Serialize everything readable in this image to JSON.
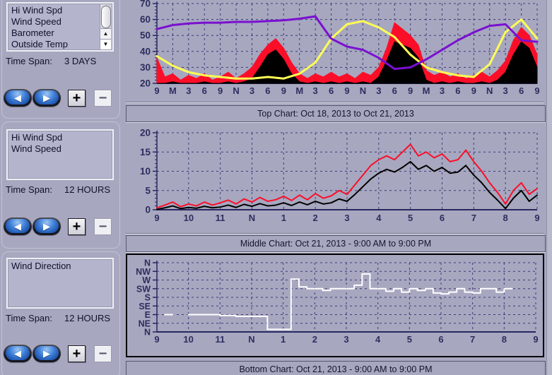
{
  "icons": {
    "back": "◀",
    "forward": "▶",
    "scroll_up": "▲",
    "scroll_down": "▼"
  },
  "sidebar": {
    "panels": [
      {
        "items": [
          "Hi Wind Spd",
          "Wind Speed",
          "Barometer",
          "Outside Temp"
        ],
        "time_span_label": "Time Span:",
        "time_span_value": "3 DAYS",
        "zoom_in_label": "+",
        "zoom_out_label": "−"
      },
      {
        "items": [
          "Hi Wind Spd",
          "Wind Speed"
        ],
        "time_span_label": "Time Span:",
        "time_span_value": "12 HOURS",
        "zoom_in_label": "+",
        "zoom_out_label": "−"
      },
      {
        "items": [
          "Wind Direction"
        ],
        "time_span_label": "Time Span:",
        "time_span_value": "12 HOURS",
        "zoom_in_label": "+",
        "zoom_out_label": "−"
      }
    ]
  },
  "captions": {
    "top": "Top Chart:  Oct 18, 2013  to  Oct 21, 2013",
    "middle": "Middle Chart:  Oct 21, 2013 - 9:00 AM  to  9:00 PM",
    "bottom": "Bottom Chart:  Oct 21, 2013 - 9:00 AM  to  9:00 PM"
  },
  "colors": {
    "background": "#a7a7c0",
    "grid": "#3c3c78",
    "axis": "#27275e",
    "tick_label": "#2d2d5e",
    "hi_wind": "#fb0f28",
    "wind": "#000000",
    "temp": "#ffff55",
    "barometer": "#7a10d0",
    "wind_dir": "#ffffff"
  },
  "chart_data": [
    {
      "id": "top",
      "type": "line",
      "title": "Top Chart: Oct 18, 2013 to Oct 21, 2013",
      "x_labels": [
        "9",
        "M",
        "3",
        "6",
        "9",
        "N",
        "3",
        "6",
        "9",
        "M",
        "3",
        "6",
        "9",
        "N",
        "3",
        "6",
        "9",
        "M",
        "3",
        "6",
        "9",
        "N",
        "3",
        "6",
        "9"
      ],
      "ylim": [
        20,
        70
      ],
      "y_ticks": [
        20,
        30,
        40,
        50,
        60,
        70
      ],
      "minor_y_step": 2,
      "grid": "dashed",
      "legend": "none",
      "series": [
        {
          "name": "Hi Wind Spd",
          "color": "#fb0f28",
          "fill": true,
          "values": [
            36,
            24,
            26,
            22,
            25,
            23,
            26,
            22,
            24,
            27,
            23,
            26,
            30,
            38,
            44,
            48,
            42,
            33,
            26,
            23,
            26,
            24,
            27,
            24,
            26,
            23,
            27,
            25,
            30,
            42,
            58,
            54,
            50,
            44,
            28,
            25,
            27,
            24,
            26,
            23,
            25,
            27,
            24,
            28,
            34,
            47,
            55,
            50,
            38
          ]
        },
        {
          "name": "Wind Speed",
          "color": "#000000",
          "fill": true,
          "values": [
            20,
            20,
            21,
            20,
            20,
            20,
            21,
            20,
            20,
            21,
            20,
            21,
            23,
            30,
            38,
            41,
            35,
            26,
            21,
            20,
            21,
            20,
            21,
            20,
            21,
            20,
            21,
            20,
            24,
            34,
            46,
            44,
            42,
            36,
            22,
            20,
            21,
            20,
            21,
            20,
            20,
            21,
            20,
            22,
            27,
            38,
            46,
            42,
            30
          ]
        },
        {
          "name": "Outside Temp",
          "color": "#ffff55",
          "width": 3,
          "values": [
            37,
            31,
            27,
            25,
            24,
            23,
            23,
            24,
            23,
            26,
            33,
            48,
            57,
            59,
            55,
            49,
            38,
            30,
            27,
            25,
            24,
            32,
            52,
            60,
            48
          ]
        },
        {
          "name": "Barometer",
          "color": "#7a10d0",
          "width": 3,
          "values": [
            54,
            56.5,
            57.5,
            58,
            58,
            58.5,
            58.5,
            59,
            59.5,
            60.5,
            62,
            48,
            43,
            41,
            36,
            29,
            30,
            35,
            41,
            47,
            52,
            56,
            57,
            47,
            46
          ]
        }
      ]
    },
    {
      "id": "middle",
      "type": "line",
      "title": "Middle Chart: Oct 21, 2013 - 9:00 AM to 9:00 PM",
      "x_labels": [
        "9",
        "10",
        "11",
        "N",
        "1",
        "2",
        "3",
        "4",
        "5",
        "6",
        "7",
        "8",
        "9"
      ],
      "ylim": [
        0,
        20
      ],
      "y_ticks": [
        0,
        5,
        10,
        15,
        20
      ],
      "minor_y_step": 1,
      "grid": "dashed",
      "legend": "none",
      "series": [
        {
          "name": "Hi Wind Spd",
          "color": "#fb0f28",
          "width": 2,
          "values": [
            0.5,
            1.2,
            2,
            0.8,
            1.5,
            1,
            2,
            1.2,
            1.8,
            2.5,
            1.5,
            2.8,
            2,
            3.2,
            2.2,
            2.6,
            3.5,
            2.4,
            3.8,
            2.6,
            4.2,
            3,
            3.6,
            5,
            4,
            6.5,
            9,
            11.5,
            13,
            14,
            13,
            15,
            17,
            14,
            15,
            13.5,
            14.5,
            12.5,
            13,
            15.5,
            12.5,
            10,
            7,
            4.5,
            1.5,
            5,
            7,
            4,
            5.5
          ]
        },
        {
          "name": "Wind Speed",
          "color": "#000000",
          "width": 2,
          "values": [
            0.1,
            0.5,
            1,
            0.3,
            0.6,
            0.4,
            0.9,
            0.5,
            0.7,
            1.2,
            0.6,
            1.4,
            0.9,
            1.6,
            1,
            1.2,
            1.8,
            1.1,
            2,
            1.3,
            2.2,
            1.5,
            1.8,
            2.8,
            2.2,
            4,
            6,
            8,
            9.5,
            10.5,
            9.8,
            11,
            12.5,
            10.5,
            11.5,
            10,
            11,
            9.5,
            9.8,
            11.5,
            9,
            7,
            4.5,
            2.5,
            0.3,
            3,
            5,
            2.2,
            3.8
          ]
        }
      ]
    },
    {
      "id": "bottom",
      "type": "line",
      "title": "Bottom Chart: Oct 21, 2013 - 9:00 AM to 9:00 PM",
      "x_labels": [
        "9",
        "10",
        "11",
        "N",
        "1",
        "2",
        "3",
        "4",
        "5",
        "6",
        "7",
        "8",
        "9"
      ],
      "ylim": [
        0,
        8
      ],
      "y_ticks": [
        0,
        1,
        2,
        3,
        4,
        5,
        6,
        7,
        8
      ],
      "y_category_labels": [
        "N",
        "NE",
        "E",
        "SE",
        "S",
        "SW",
        "W",
        "NW",
        "N"
      ],
      "grid": "dashed",
      "legend": "none",
      "series": [
        {
          "name": "Wind Direction",
          "color": "#ffffff",
          "width": 2,
          "step": true,
          "values": [
            null,
            2,
            2,
            null,
            2,
            2,
            2,
            2,
            1.9,
            1.9,
            1.8,
            1.8,
            1.8,
            1.8,
            0.3,
            0.3,
            0.3,
            6.1,
            5.2,
            5,
            5,
            4.8,
            5,
            5,
            5,
            5.4,
            6.7,
            5,
            5,
            4.7,
            5,
            4.6,
            5,
            4.8,
            5,
            4.5,
            4.4,
            4.6,
            5,
            4.6,
            4.5,
            5,
            5,
            4.6,
            5,
            5,
            null,
            5,
            null
          ]
        }
      ]
    }
  ]
}
